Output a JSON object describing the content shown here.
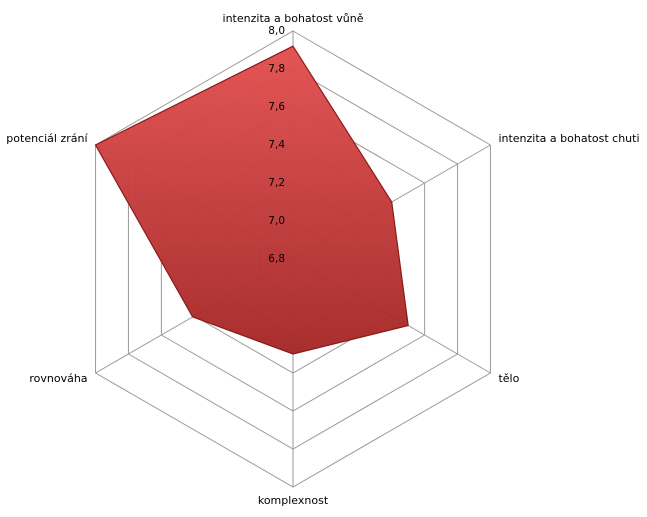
{
  "chart_data": {
    "type": "radar",
    "categories": [
      "intenzita a bohatost vůně",
      "intenzita a bohatost chuti",
      "tělo",
      "komplexnost",
      "rovnováha",
      "potenciál zrání"
    ],
    "values": [
      7.92,
      7.4,
      7.5,
      7.3,
      7.41,
      8.0
    ],
    "color": "#c83232",
    "ylim": [
      6.8,
      8.0
    ],
    "yticks": [
      {
        "value": 6.8,
        "label": "6,8"
      },
      {
        "value": 7.0,
        "label": "7,0"
      },
      {
        "value": 7.2,
        "label": "7,2"
      },
      {
        "value": 7.4,
        "label": "7,4"
      },
      {
        "value": 7.6,
        "label": "7,6"
      },
      {
        "value": 7.8,
        "label": "7,8"
      },
      {
        "value": 8.0,
        "label": "8,0"
      }
    ],
    "grid": true
  }
}
